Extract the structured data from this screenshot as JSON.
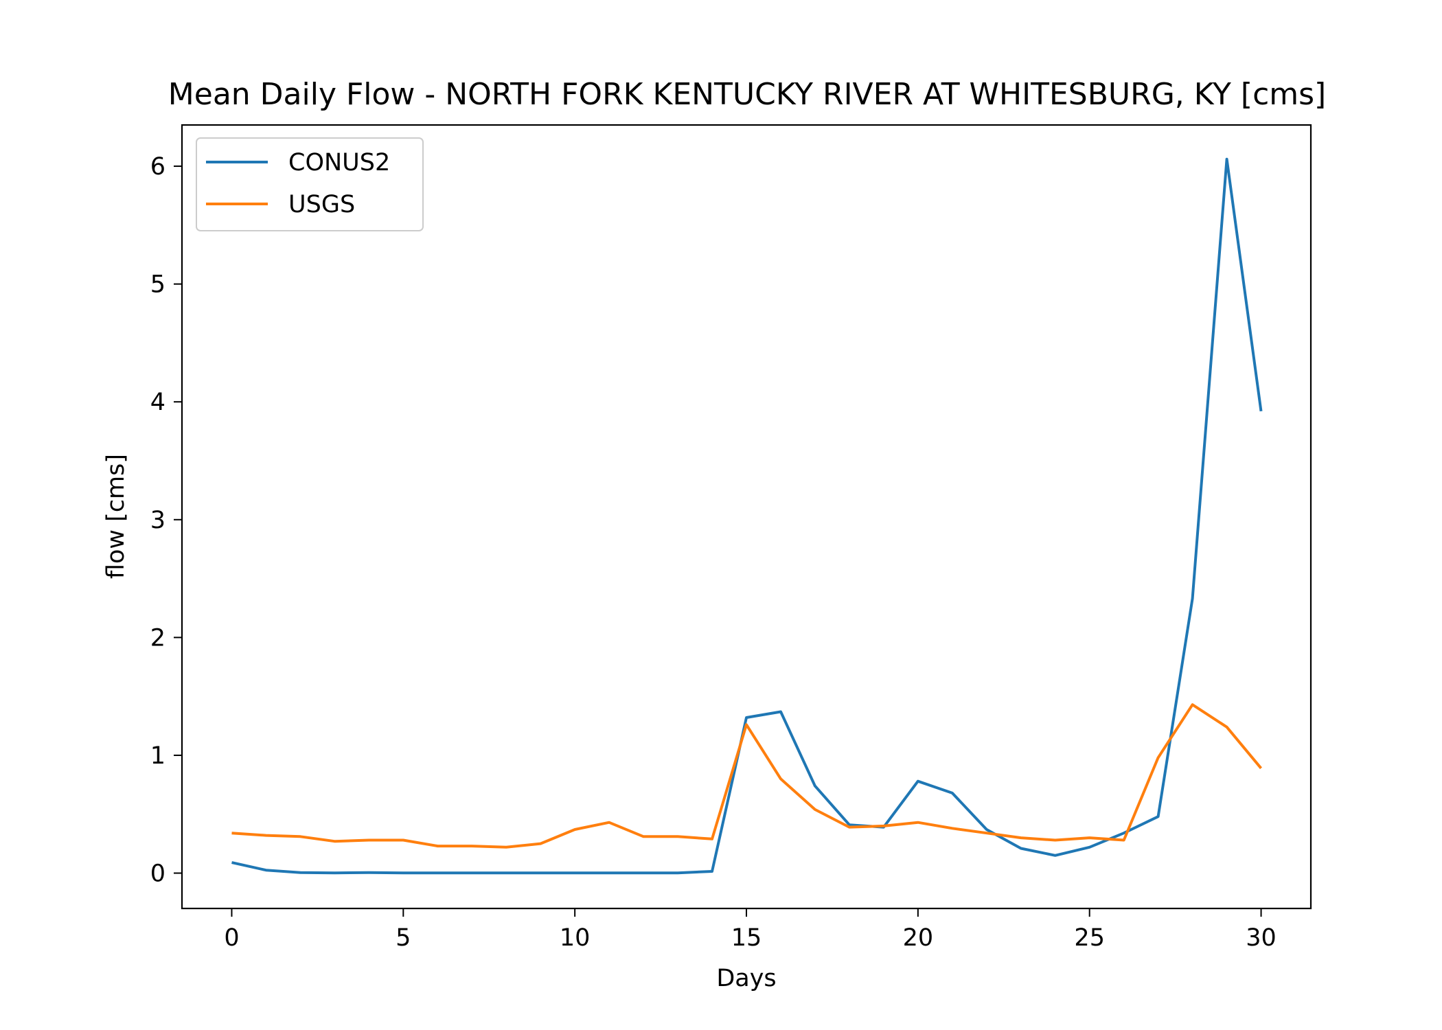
{
  "chart_data": {
    "type": "line",
    "title": "Mean Daily Flow - NORTH FORK KENTUCKY RIVER AT WHITESBURG, KY [cms]",
    "xlabel": "Days",
    "ylabel": "flow [cms]",
    "xlim": [
      -1.45,
      31.45
    ],
    "ylim": [
      -0.3,
      6.35
    ],
    "x_ticks": [
      0,
      5,
      10,
      15,
      20,
      25,
      30
    ],
    "y_ticks": [
      0,
      1,
      2,
      3,
      4,
      5,
      6
    ],
    "grid": false,
    "legend_position": "upper-left",
    "x": [
      0,
      1,
      2,
      3,
      4,
      5,
      6,
      7,
      8,
      9,
      10,
      11,
      12,
      13,
      14,
      15,
      16,
      17,
      18,
      19,
      20,
      21,
      22,
      23,
      24,
      25,
      26,
      27,
      28,
      29,
      30
    ],
    "series": [
      {
        "name": "CONUS2",
        "color": "#1f77b4",
        "values": [
          0.09,
          0.025,
          0.005,
          0.002,
          0.004,
          0.002,
          0.002,
          0.002,
          0.002,
          0.002,
          0.002,
          0.002,
          0.002,
          0.002,
          0.015,
          1.32,
          1.37,
          0.74,
          0.41,
          0.39,
          0.78,
          0.68,
          0.37,
          0.21,
          0.15,
          0.22,
          0.34,
          0.48,
          2.33,
          6.06,
          3.92
        ]
      },
      {
        "name": "USGS",
        "color": "#ff7f0e",
        "values": [
          0.34,
          0.32,
          0.31,
          0.27,
          0.28,
          0.28,
          0.23,
          0.23,
          0.22,
          0.25,
          0.37,
          0.43,
          0.31,
          0.31,
          0.29,
          1.26,
          0.8,
          0.54,
          0.39,
          0.4,
          0.43,
          0.38,
          0.34,
          0.3,
          0.28,
          0.3,
          0.28,
          0.98,
          1.43,
          1.24,
          0.89
        ]
      }
    ]
  }
}
